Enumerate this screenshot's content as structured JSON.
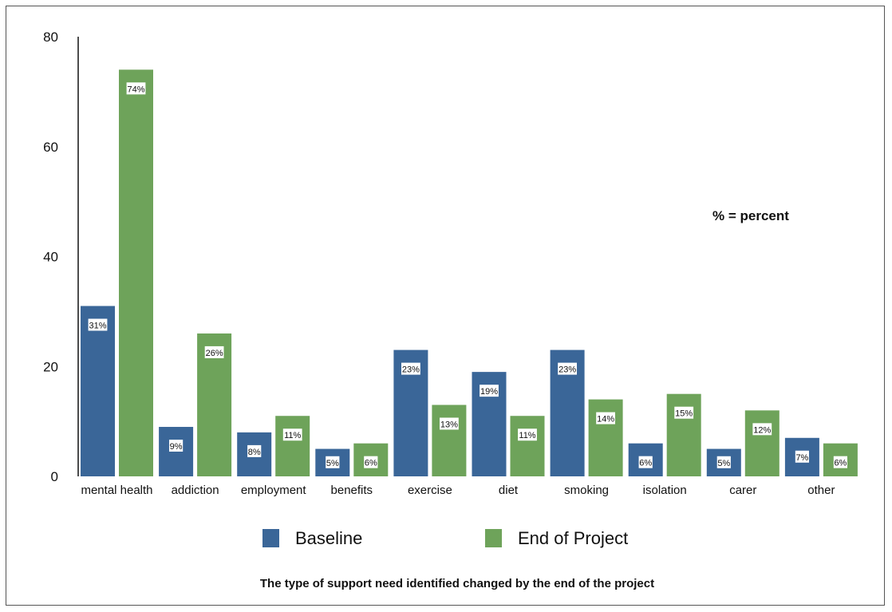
{
  "chart_data": {
    "type": "bar",
    "title": "The type of support need identified changed by the end of the project",
    "annotation": "% = percent",
    "categories": [
      "mental health",
      "addiction",
      "employment",
      "benefits",
      "exercise",
      "diet",
      "smoking",
      "isolation",
      "carer",
      "other"
    ],
    "series": [
      {
        "name": "Baseline",
        "color": "#3a6698",
        "values": [
          31,
          9,
          8,
          5,
          23,
          19,
          23,
          6,
          5,
          7
        ],
        "labels": [
          "31%",
          "9%",
          "8%",
          "5%",
          "23%",
          "19%",
          "23%",
          "6%",
          "5%",
          "7%"
        ]
      },
      {
        "name": "End of Project",
        "color": "#6ea35a",
        "values": [
          74,
          26,
          11,
          6,
          13,
          11,
          14,
          15,
          12,
          6
        ],
        "labels": [
          "74%",
          "26%",
          "11%",
          "6%",
          "13%",
          "11%",
          "14%",
          "15%",
          "12%",
          "6%"
        ]
      }
    ],
    "ylim": [
      0,
      80
    ],
    "yticks": [
      0,
      20,
      40,
      60,
      80
    ],
    "xlabel": "",
    "ylabel": "",
    "grid": false,
    "legend": "bottom"
  }
}
